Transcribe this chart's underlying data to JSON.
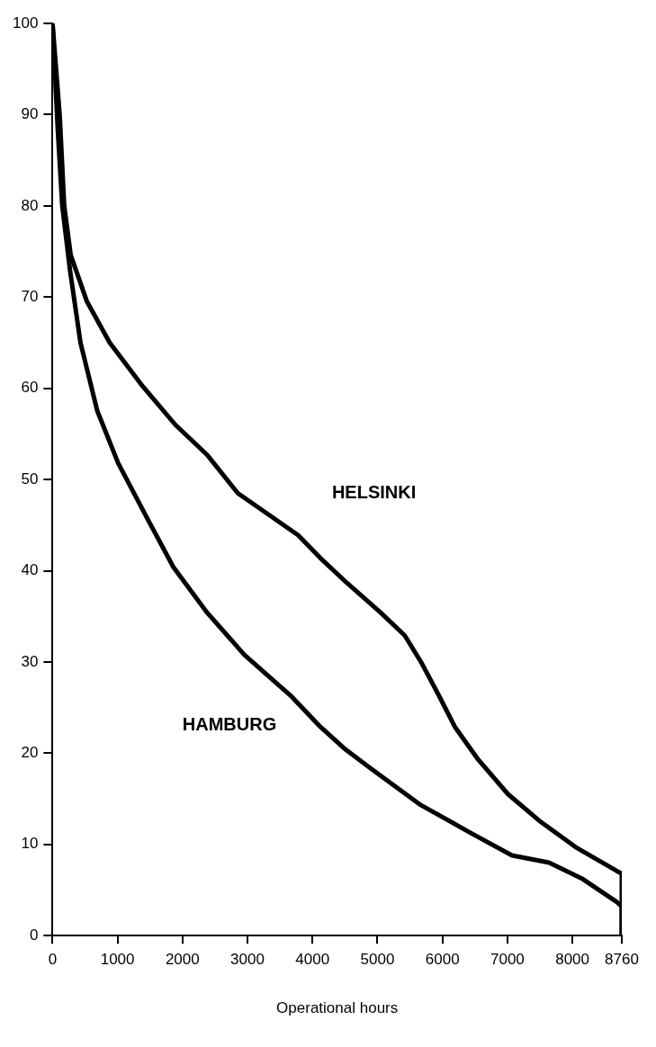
{
  "chart_data": {
    "type": "line",
    "xlabel": "Operational hours",
    "xlim": [
      0,
      8760
    ],
    "xticks": [
      0,
      1000,
      2000,
      3000,
      4000,
      5000,
      6000,
      7000,
      8000,
      8760
    ],
    "ylim": [
      0,
      100
    ],
    "yticks": [
      0,
      10,
      20,
      30,
      40,
      50,
      60,
      70,
      80,
      90,
      100
    ],
    "marker": "none",
    "line_style": "solid",
    "series": [
      {
        "name": "HELSINKI",
        "color": "#000000",
        "x": [
          0,
          110,
          180,
          280,
          530,
          880,
          1390,
          1890,
          2380,
          2850,
          3780,
          4120,
          4540,
          5050,
          5420,
          5670,
          5940,
          6190,
          6550,
          7010,
          7490,
          8050,
          8680,
          8760,
          8760
        ],
        "values": [
          100,
          90,
          80,
          74.6,
          69.5,
          65,
          60.2,
          56,
          52.7,
          48.5,
          43.9,
          41.4,
          38.6,
          35.4,
          32.9,
          30,
          26.4,
          22.9,
          19.3,
          15.5,
          12.6,
          9.7,
          7.1,
          6.8,
          0
        ]
      },
      {
        "name": "HAMBURG",
        "color": "#000000",
        "x": [
          0,
          80,
          150,
          270,
          430,
          690,
          1010,
          1460,
          1860,
          2380,
          2950,
          3680,
          4120,
          4510,
          4900,
          5670,
          6450,
          7070,
          7640,
          8160,
          8680,
          8760,
          8760
        ],
        "values": [
          100,
          88.4,
          80,
          72.9,
          65,
          57.5,
          51.8,
          45.7,
          40.4,
          35.4,
          30.8,
          26.2,
          22.9,
          20.4,
          18.3,
          14.3,
          11.2,
          8.8,
          8,
          6.2,
          3.7,
          3.2,
          0
        ]
      }
    ]
  }
}
